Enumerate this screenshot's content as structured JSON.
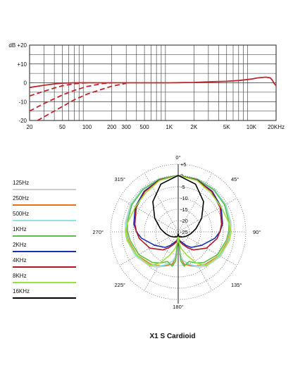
{
  "chart_data": [
    {
      "type": "line",
      "x_scale": "log",
      "xlim": [
        20,
        20000
      ],
      "ylim": [
        -20,
        20
      ],
      "xticks": [
        20,
        50,
        100,
        200,
        300,
        500,
        1000,
        2000,
        5000,
        10000,
        20000
      ],
      "xtick_labels": [
        "20",
        "50",
        "100",
        "200",
        "300",
        "500",
        "1K",
        "2K",
        "5K",
        "10K",
        "20KHz"
      ],
      "yticks": [
        20,
        10,
        0,
        -10,
        -20
      ],
      "ytick_labels": [
        "dB +20",
        "+10",
        "0",
        "-10",
        "-20"
      ],
      "grid": true,
      "series": [
        {
          "style": "solid",
          "color": "#c0262d",
          "x": [
            20,
            30,
            40,
            50,
            70,
            100,
            150,
            200,
            300,
            500,
            1000,
            2000,
            3000,
            5000,
            7000,
            10000,
            12000,
            15000,
            17000,
            18000,
            19000,
            20000
          ],
          "y": [
            -2.5,
            -1.3,
            -0.6,
            -0.2,
            0,
            0,
            0,
            0,
            0,
            0,
            0,
            0.2,
            0.5,
            0.8,
            1.2,
            2.0,
            2.6,
            3.0,
            2.6,
            1.4,
            -0.5,
            -1.5
          ]
        },
        {
          "style": "dashed",
          "color": "#c0262d",
          "x": [
            20,
            30,
            40,
            50,
            70,
            100
          ],
          "y": [
            -7,
            -4.5,
            -2.8,
            -1.6,
            -0.5,
            0
          ]
        },
        {
          "style": "dashed",
          "color": "#c0262d",
          "x": [
            20,
            30,
            50,
            70,
            100,
            150,
            200
          ],
          "y": [
            -15,
            -11,
            -6.5,
            -4,
            -2,
            -0.5,
            0
          ]
        },
        {
          "style": "dashed",
          "color": "#c0262d",
          "x": [
            25,
            40,
            70,
            100,
            150,
            200,
            300
          ],
          "y": [
            -20,
            -15,
            -9,
            -6,
            -3.5,
            -1.8,
            -0.3
          ]
        }
      ]
    },
    {
      "type": "polar",
      "rlim": [
        -25,
        5
      ],
      "r_ticks": [
        5,
        0,
        -5,
        -10,
        -15,
        -20,
        -25
      ],
      "r_tick_labels": [
        "+5",
        "0",
        "-5",
        "-10",
        "-15",
        "-20",
        "-25"
      ],
      "angle_labels": [
        "0°",
        "45°",
        "90°",
        "135°",
        "180°",
        "225°",
        "270°",
        "315°"
      ],
      "series": [
        {
          "name": "125Hz",
          "color": "#cfcfcf",
          "angles": [
            0,
            20,
            40,
            60,
            80,
            90,
            100,
            120,
            140,
            150,
            160,
            170,
            175,
            180
          ],
          "r": [
            0,
            -0.1,
            -0.3,
            -0.6,
            -1.2,
            -1.6,
            -2.1,
            -3.2,
            -5.2,
            -6.8,
            -9,
            -12,
            -15,
            -24
          ]
        },
        {
          "name": "250Hz",
          "color": "#e8721c",
          "angles": [
            0,
            20,
            40,
            60,
            80,
            90,
            100,
            120,
            140,
            150,
            160,
            170,
            175,
            180
          ],
          "r": [
            0,
            -0.1,
            -0.4,
            -0.8,
            -1.5,
            -2.0,
            -2.6,
            -4.0,
            -6.2,
            -7.6,
            -9,
            -10.5,
            -14,
            -24
          ]
        },
        {
          "name": "500Hz",
          "color": "#8ee3e3",
          "angles": [
            0,
            20,
            40,
            60,
            80,
            90,
            100,
            120,
            140,
            150,
            160,
            170,
            175,
            180
          ],
          "r": [
            0,
            -0.1,
            -0.3,
            -0.8,
            -1.4,
            -1.8,
            -2.3,
            -3.6,
            -5.8,
            -7.4,
            -9.5,
            -12,
            -14,
            -24
          ]
        },
        {
          "name": "1KHz",
          "color": "#5cbf4a",
          "angles": [
            0,
            20,
            40,
            60,
            80,
            90,
            100,
            120,
            140,
            150,
            160,
            170,
            175,
            180
          ],
          "r": [
            0,
            -0.2,
            -0.6,
            -1.2,
            -2.1,
            -2.6,
            -3.3,
            -4.8,
            -7.2,
            -9,
            -11,
            -9.5,
            -12,
            -24
          ]
        },
        {
          "name": "2KHz",
          "color": "#1a2fb8",
          "angles": [
            0,
            20,
            40,
            60,
            80,
            90,
            100,
            120,
            140,
            150,
            160,
            170,
            175,
            180
          ],
          "r": [
            0,
            -0.5,
            -1.5,
            -3.0,
            -5.0,
            -6.5,
            -8.5,
            -13,
            -16,
            -18,
            -20,
            -21,
            -22,
            -24
          ]
        },
        {
          "name": "4KHz",
          "color": "#b01822",
          "angles": [
            0,
            20,
            40,
            60,
            80,
            90,
            100,
            120,
            140,
            150,
            160,
            170,
            175,
            180
          ],
          "r": [
            0,
            -0.6,
            -1.8,
            -3.5,
            -5.5,
            -6.5,
            -7.5,
            -10.5,
            -14.5,
            -17,
            -19,
            -20.5,
            -21.5,
            -24
          ]
        },
        {
          "name": "8KHz",
          "color": "#9be33c",
          "angles": [
            0,
            20,
            40,
            60,
            80,
            90,
            100,
            120,
            140,
            150,
            160,
            170,
            175,
            180
          ],
          "r": [
            0,
            -0.8,
            -2.5,
            -3.0,
            -2.2,
            -1.5,
            -2.0,
            -4.0,
            -5.5,
            -9,
            -14,
            -17.5,
            -20,
            -24
          ]
        },
        {
          "name": "16KHz",
          "color": "#000000",
          "angles": [
            0,
            20,
            40,
            60,
            80,
            90,
            100,
            120,
            140,
            150,
            160,
            170,
            175,
            180
          ],
          "r": [
            0,
            -2.5,
            -7.5,
            -13,
            -17,
            -18.5,
            -19.5,
            -21,
            -22,
            -22.5,
            -22.5,
            -23,
            -23.5,
            -24
          ]
        }
      ]
    }
  ],
  "caption": "X1 S  Cardioid"
}
